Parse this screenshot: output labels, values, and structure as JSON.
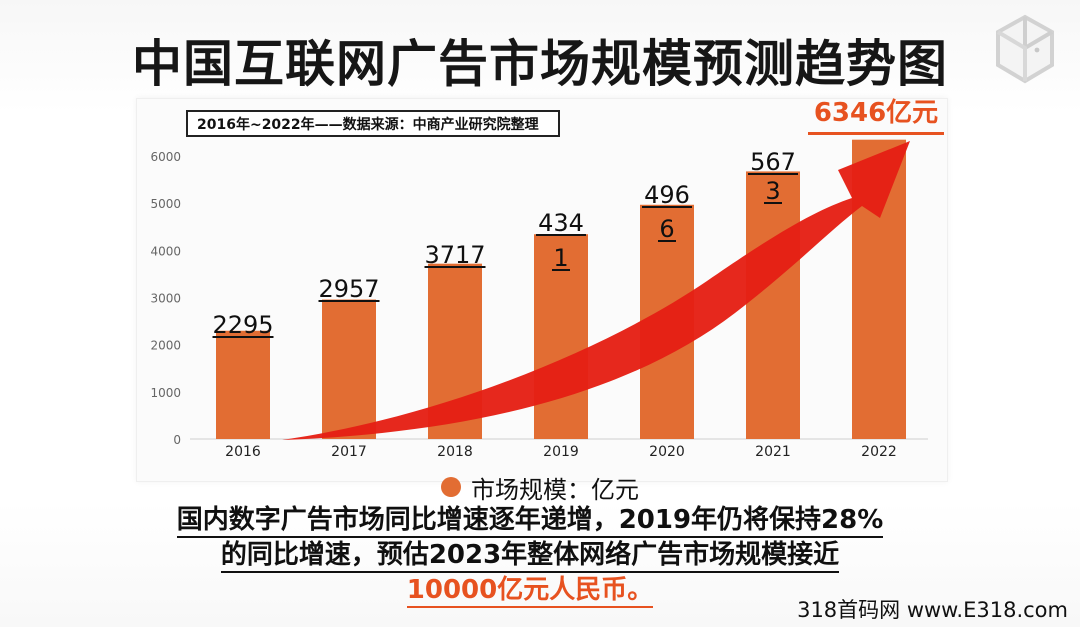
{
  "title": "中国互联网广告市场规模预测趋势图",
  "source_note": "2016年~2022年——数据来源：中商产业研究院整理",
  "final_callout": "6346亿元",
  "legend": {
    "label": "市场规模：亿元",
    "color": "#e26d33"
  },
  "summary": [
    "国内数字广告市场同比增速逐年递增，2019年仍将保持28%",
    "的同比增速，预估2023年整体网络广告市场规模接近",
    "10000亿元人民币。"
  ],
  "watermark": "318首码网 www.E318.com",
  "logo": {
    "icon": "cube-icon"
  },
  "colors": {
    "bar": "#e26d33",
    "arrow": "#e51f14",
    "axis": "#666666",
    "label": "#101010",
    "highlight": "#e75220"
  },
  "chart_data": {
    "type": "bar",
    "title": "中国互联网广告市场规模预测趋势图",
    "xlabel": "",
    "ylabel": "",
    "categories": [
      "2016",
      "2017",
      "2018",
      "2019",
      "2020",
      "2021",
      "2022"
    ],
    "series": [
      {
        "name": "市场规模：亿元",
        "values": [
          2295,
          2957,
          3717,
          4341,
          4966,
          5673,
          6346
        ]
      }
    ],
    "data_labels": [
      [
        "2295"
      ],
      [
        "2957"
      ],
      [
        "3717"
      ],
      [
        "434",
        "1"
      ],
      [
        "496",
        "6"
      ],
      [
        "567",
        "3"
      ],
      []
    ],
    "ylim": [
      0,
      6000
    ],
    "y_ticks": [
      0,
      1000,
      2000,
      3000,
      4000,
      5000,
      6000
    ],
    "grid": false,
    "legend_position": "bottom"
  }
}
